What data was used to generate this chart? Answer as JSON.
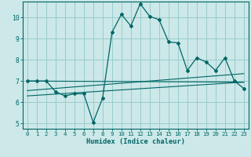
{
  "title": "",
  "xlabel": "Humidex (Indice chaleur)",
  "ylabel": "",
  "bg_color": "#cce8e8",
  "grid_color": "#99cccc",
  "line_color": "#006666",
  "xlim": [
    -0.5,
    23.5
  ],
  "ylim": [
    4.75,
    10.75
  ],
  "xticks": [
    0,
    1,
    2,
    3,
    4,
    5,
    6,
    7,
    8,
    9,
    10,
    11,
    12,
    13,
    14,
    15,
    16,
    17,
    18,
    19,
    20,
    21,
    22,
    23
  ],
  "yticks": [
    5,
    6,
    7,
    8,
    9,
    10
  ],
  "main_x": [
    0,
    1,
    2,
    3,
    4,
    5,
    6,
    7,
    8,
    9,
    10,
    11,
    12,
    13,
    14,
    15,
    16,
    17,
    18,
    19,
    20,
    21,
    22,
    23
  ],
  "main_y": [
    7.0,
    7.0,
    7.0,
    6.5,
    6.3,
    6.4,
    6.4,
    5.05,
    6.2,
    9.3,
    10.15,
    9.6,
    10.65,
    10.05,
    9.9,
    8.85,
    8.8,
    7.5,
    8.1,
    7.9,
    7.5,
    8.1,
    7.0,
    6.65
  ],
  "line2_x": [
    0,
    23
  ],
  "line2_y": [
    7.0,
    6.95
  ],
  "line3_x": [
    0,
    23
  ],
  "line3_y": [
    6.55,
    7.35
  ],
  "line4_x": [
    0,
    23
  ],
  "line4_y": [
    6.3,
    6.95
  ]
}
